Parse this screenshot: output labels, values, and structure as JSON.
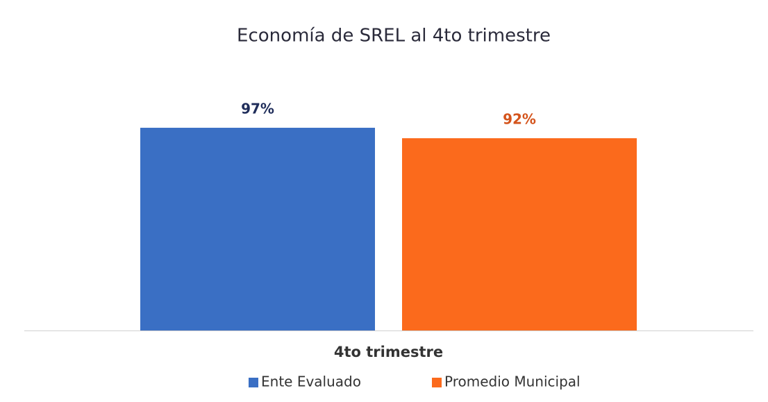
{
  "chart_data": {
    "type": "bar",
    "title": "Economía de SREL al 4to trimestre",
    "categories": [
      "4to trimestre"
    ],
    "series": [
      {
        "name": "Ente Evaluado",
        "color": "#3a6fc4",
        "label_color": "#1f2d5a",
        "values": [
          97
        ],
        "value_labels": [
          "97%"
        ]
      },
      {
        "name": "Promedio Municipal",
        "color": "#fb6a1c",
        "label_color": "#d4541c",
        "values": [
          92
        ],
        "value_labels": [
          "92%"
        ]
      }
    ],
    "ylim": [
      0,
      100
    ],
    "legend": "bottom"
  }
}
